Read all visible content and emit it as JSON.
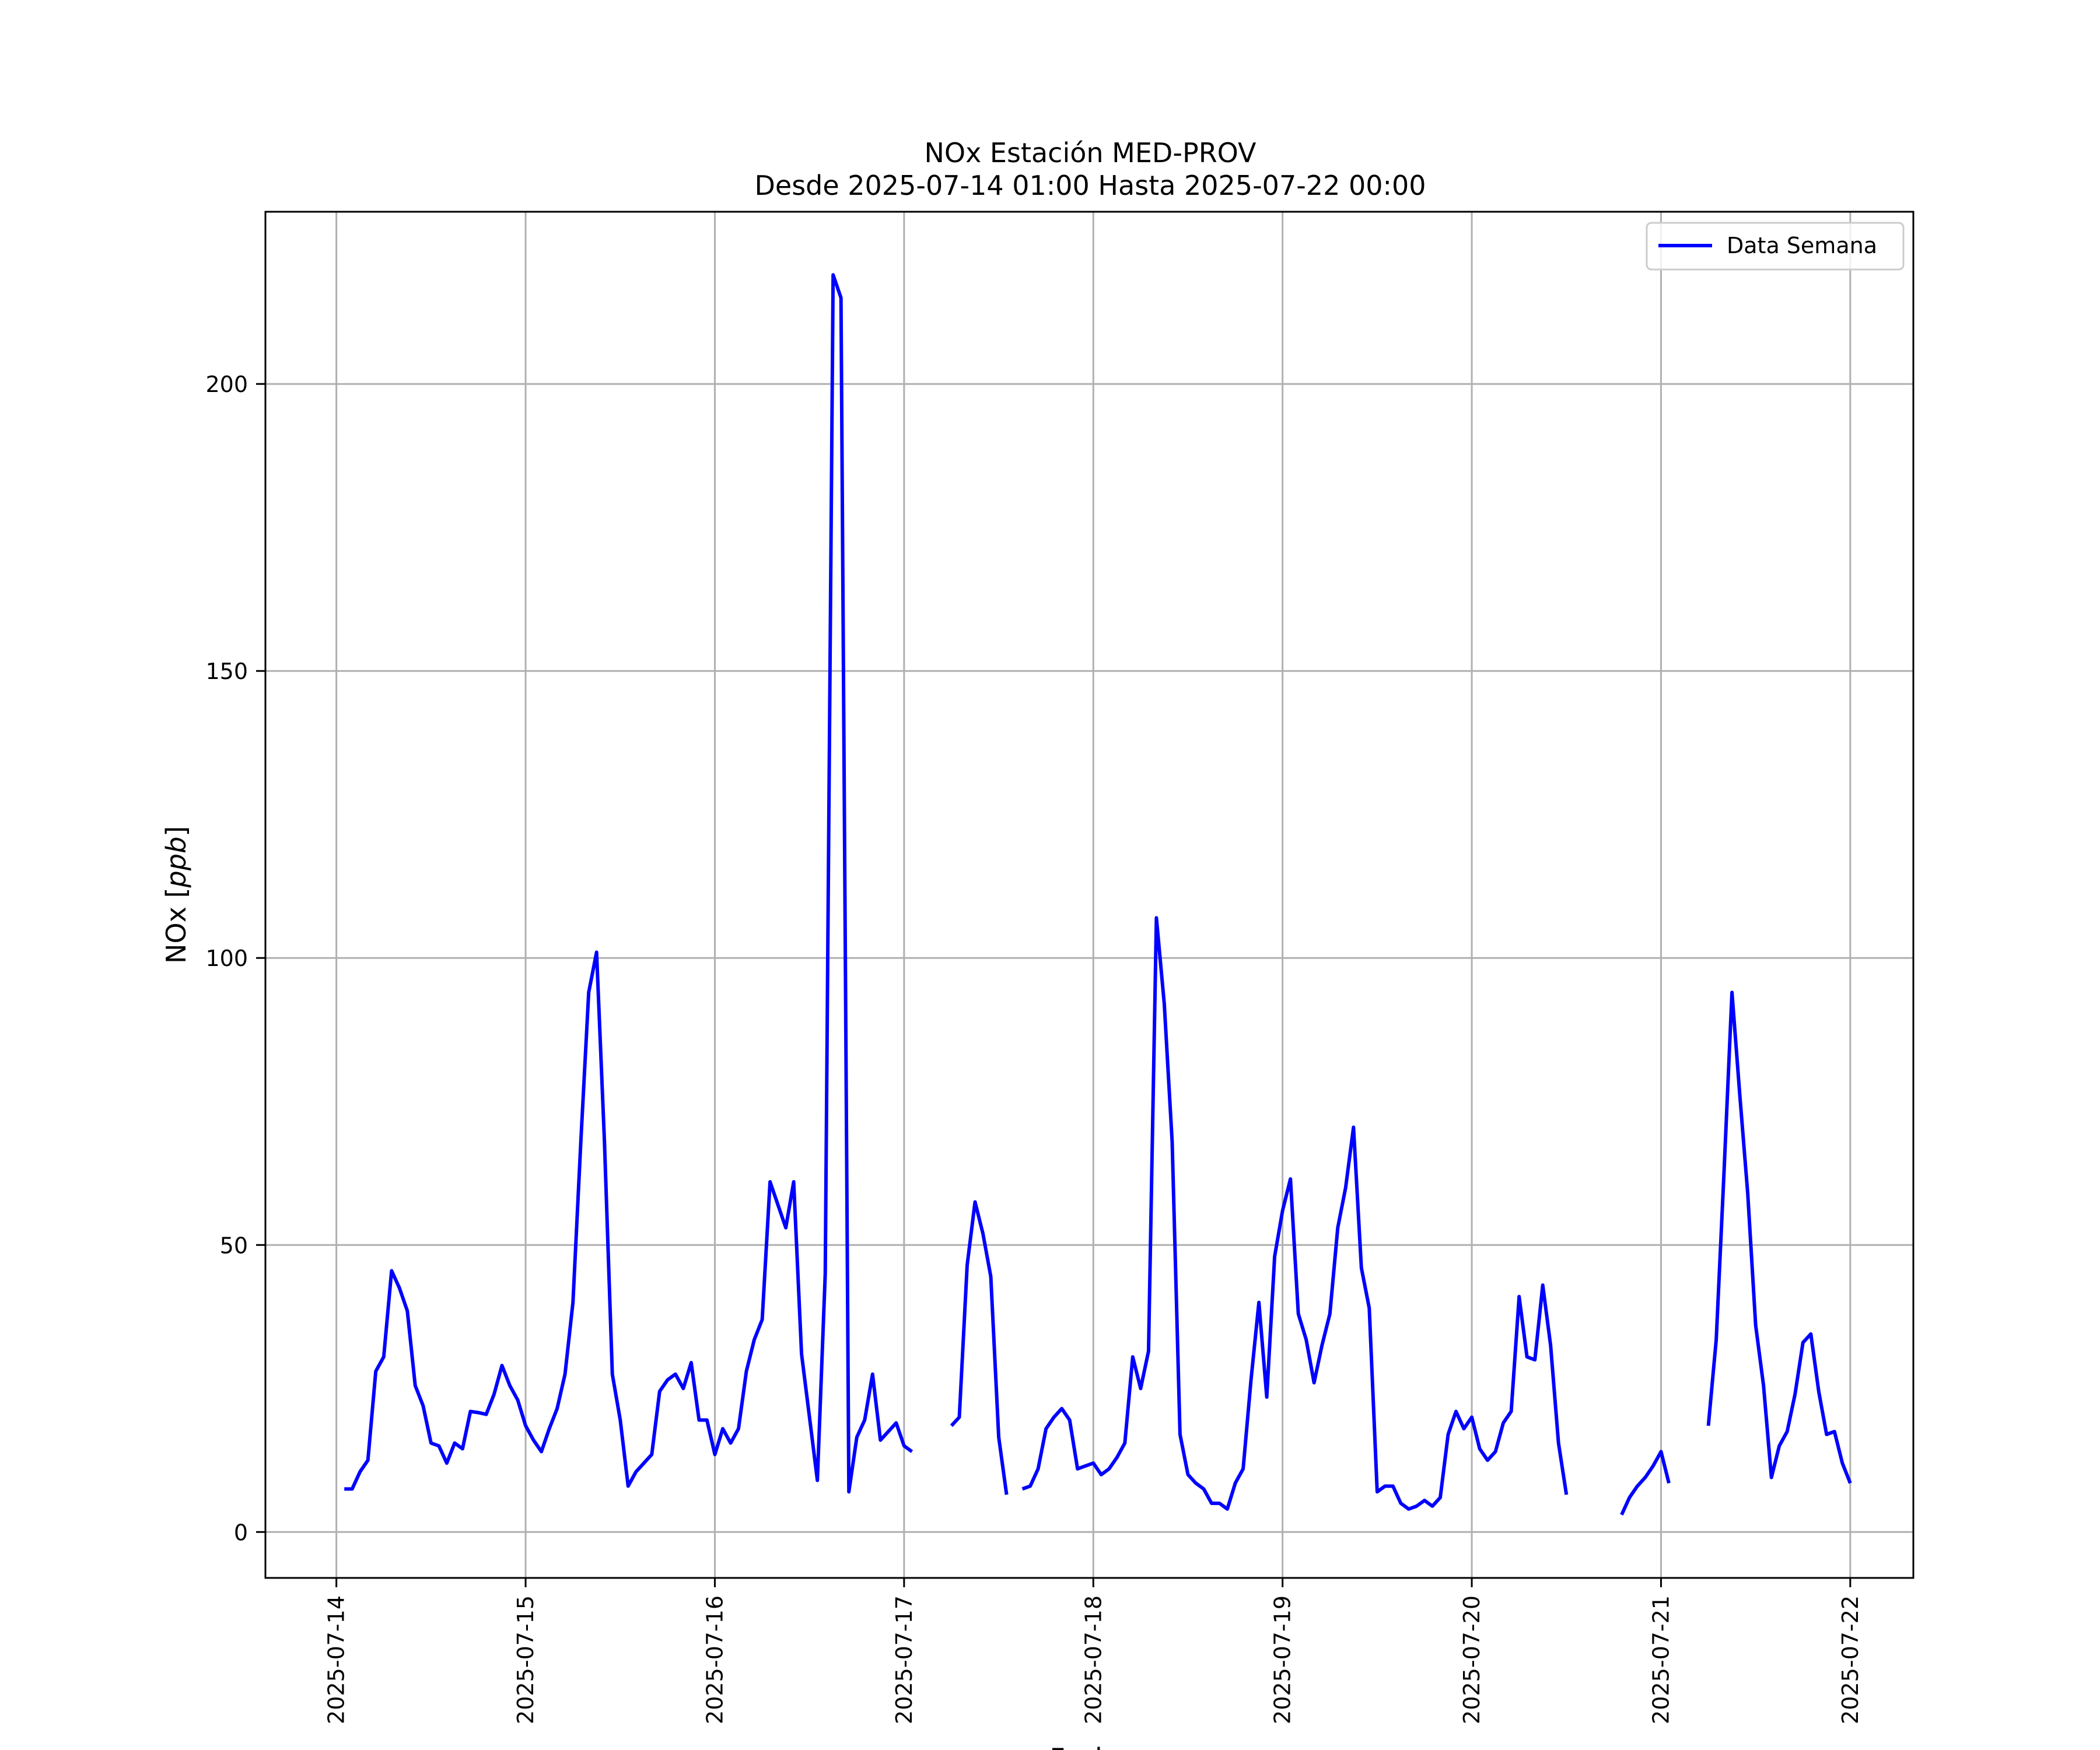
{
  "chart_data": {
    "type": "line",
    "title": "NOx Estación MED-PROV",
    "subtitle": "Desde 2025-07-14 01:00 Hasta 2025-07-22 00:00",
    "xlabel": "Fecha",
    "ylabel": "NOx [ppb]",
    "ylabel_main": "NOx ",
    "ylabel_italic": "ppb",
    "xlim": [
      "2025-07-13 15:00",
      "2025-07-22 08:00"
    ],
    "ylim": [
      -8,
      230
    ],
    "x_ticks": [
      "2025-07-14",
      "2025-07-15",
      "2025-07-16",
      "2025-07-17",
      "2025-07-18",
      "2025-07-19",
      "2025-07-20",
      "2025-07-21",
      "2025-07-22"
    ],
    "y_ticks": [
      0,
      50,
      100,
      150,
      200
    ],
    "grid": true,
    "legend": "top-right",
    "series": [
      {
        "name": "Data Semana",
        "color": "#0000ff",
        "start": "2025-07-14 01:00",
        "interval_hours": 1,
        "values": [
          7.5,
          7.5,
          10.5,
          12.5,
          28,
          30.5,
          45.5,
          42.5,
          38.5,
          25.5,
          22,
          15.5,
          15,
          12,
          15.5,
          14.5,
          21,
          20.8,
          20.5,
          24,
          29,
          25.5,
          23,
          18.5,
          16,
          14,
          18,
          21.5,
          27.5,
          40,
          68,
          94,
          101,
          68,
          27.5,
          19.5,
          8,
          10.5,
          12,
          13.5,
          24.5,
          26.5,
          27.5,
          25,
          29.5,
          19.5,
          19.5,
          13.5,
          18,
          15.5,
          18,
          28,
          33.5,
          37,
          61,
          57,
          53,
          61,
          31,
          20,
          9,
          45,
          219,
          215,
          7,
          16.5,
          19.5,
          27.5,
          16,
          17.5,
          19,
          15,
          14,
          null,
          null,
          null,
          null,
          18.5,
          20,
          46.5,
          57.5,
          52,
          44.5,
          16.5,
          6.5,
          null,
          7.5,
          8,
          11,
          18,
          20,
          21.5,
          19.5,
          11,
          11.5,
          12,
          10,
          11,
          13,
          15.5,
          30.5,
          25,
          31.5,
          107,
          92,
          68,
          17,
          10,
          8.5,
          7.5,
          5,
          5,
          4,
          8.5,
          11,
          26.5,
          40,
          23.5,
          48,
          56,
          61.5,
          38,
          33.5,
          26,
          32.5,
          38,
          53,
          60,
          70.5,
          46,
          39,
          7,
          8,
          8,
          5,
          4,
          4.5,
          5.5,
          4.5,
          6,
          17,
          21,
          18,
          20,
          14.5,
          12.5,
          14,
          19,
          21,
          41,
          30.5,
          30,
          43,
          32.5,
          15.5,
          6.5,
          null,
          null,
          null,
          null,
          null,
          null,
          3,
          6,
          8,
          9.5,
          11.5,
          14,
          8.5,
          null,
          null,
          null,
          null,
          18.5,
          33.5,
          63,
          94,
          76,
          59,
          36,
          25.5,
          9.5,
          15,
          17.5,
          24,
          33,
          34.5,
          24.5,
          17,
          17.5,
          12,
          8.5
        ]
      }
    ]
  }
}
